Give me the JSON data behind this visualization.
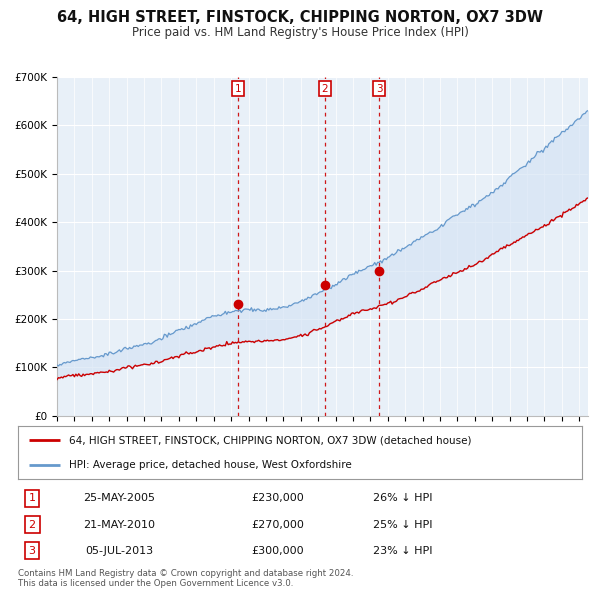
{
  "title": "64, HIGH STREET, FINSTOCK, CHIPPING NORTON, OX7 3DW",
  "subtitle": "Price paid vs. HM Land Registry's House Price Index (HPI)",
  "legend_label_red": "64, HIGH STREET, FINSTOCK, CHIPPING NORTON, OX7 3DW (detached house)",
  "legend_label_blue": "HPI: Average price, detached house, West Oxfordshire",
  "footer_line1": "Contains HM Land Registry data © Crown copyright and database right 2024.",
  "footer_line2": "This data is licensed under the Open Government Licence v3.0.",
  "transactions": [
    {
      "num": 1,
      "date": "25-MAY-2005",
      "price": "£230,000",
      "pct": "26% ↓ HPI",
      "year": 2005.38
    },
    {
      "num": 2,
      "date": "21-MAY-2010",
      "price": "£270,000",
      "pct": "25% ↓ HPI",
      "year": 2010.38
    },
    {
      "num": 3,
      "date": "05-JUL-2013",
      "price": "£300,000",
      "pct": "23% ↓ HPI",
      "year": 2013.51
    }
  ],
  "transaction_values": [
    230000,
    270000,
    300000
  ],
  "ylim": [
    0,
    700000
  ],
  "ytick_vals": [
    0,
    100000,
    200000,
    300000,
    400000,
    500000,
    600000,
    700000
  ],
  "ytick_labels": [
    "£0",
    "£100K",
    "£200K",
    "£300K",
    "£400K",
    "£500K",
    "£600K",
    "£700K"
  ],
  "xlim_start": 1995.0,
  "xlim_end": 2025.5,
  "red_color": "#cc0000",
  "blue_color": "#6699cc",
  "fill_color": "#d6e4f5",
  "plot_bg_color": "#e8f0f8",
  "grid_color": "#ffffff",
  "vline_color": "#cc0000",
  "seed": 17
}
